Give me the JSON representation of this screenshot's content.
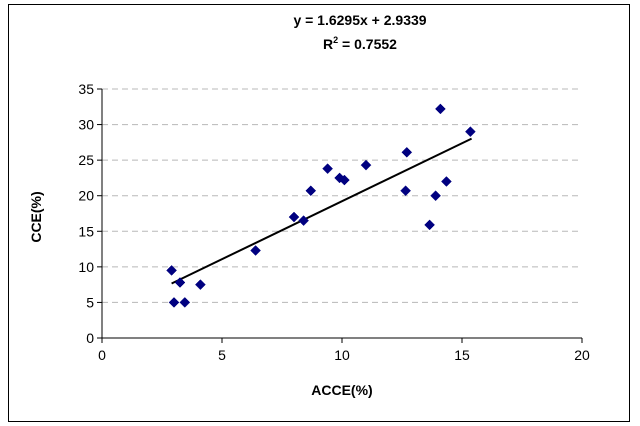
{
  "chart_data": {
    "type": "scatter",
    "title": "",
    "annotations": {
      "equation_prefix": "y = 1.6295x + 2.9339",
      "r2_label": "R",
      "r2_sup": "2",
      "r2_value": " = 0.7552"
    },
    "xlabel": "ACCE(%)",
    "ylabel": "CCE(%)",
    "xlim": [
      0,
      20
    ],
    "ylim": [
      0,
      35
    ],
    "x_ticks": [
      0,
      5,
      10,
      15,
      20
    ],
    "y_ticks": [
      0,
      5,
      10,
      15,
      20,
      25,
      30,
      35
    ],
    "grid": "horizontal dashed",
    "marker_color": "#000080",
    "trendline": {
      "slope": 1.6295,
      "intercept": 2.9339,
      "x_range": [
        2.9,
        15.4
      ]
    },
    "series": [
      {
        "points": [
          {
            "x": 2.9,
            "y": 9.5
          },
          {
            "x": 3.0,
            "y": 5.0
          },
          {
            "x": 3.25,
            "y": 7.8
          },
          {
            "x": 3.45,
            "y": 5.0
          },
          {
            "x": 4.1,
            "y": 7.5
          },
          {
            "x": 6.4,
            "y": 12.3
          },
          {
            "x": 8.0,
            "y": 17.0
          },
          {
            "x": 8.4,
            "y": 16.5
          },
          {
            "x": 8.7,
            "y": 20.7
          },
          {
            "x": 9.4,
            "y": 23.8
          },
          {
            "x": 9.9,
            "y": 22.5
          },
          {
            "x": 10.1,
            "y": 22.2
          },
          {
            "x": 11.0,
            "y": 24.3
          },
          {
            "x": 12.65,
            "y": 20.7
          },
          {
            "x": 12.7,
            "y": 26.1
          },
          {
            "x": 13.65,
            "y": 15.9
          },
          {
            "x": 13.9,
            "y": 20.0
          },
          {
            "x": 14.1,
            "y": 32.2
          },
          {
            "x": 14.35,
            "y": 22.0
          },
          {
            "x": 15.35,
            "y": 29.0
          }
        ]
      }
    ]
  }
}
